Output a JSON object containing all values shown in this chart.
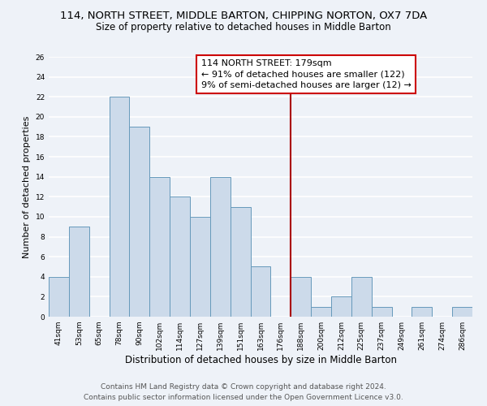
{
  "title": "114, NORTH STREET, MIDDLE BARTON, CHIPPING NORTON, OX7 7DA",
  "subtitle": "Size of property relative to detached houses in Middle Barton",
  "xlabel": "Distribution of detached houses by size in Middle Barton",
  "ylabel": "Number of detached properties",
  "bar_labels": [
    "41sqm",
    "53sqm",
    "65sqm",
    "78sqm",
    "90sqm",
    "102sqm",
    "114sqm",
    "127sqm",
    "139sqm",
    "151sqm",
    "163sqm",
    "176sqm",
    "188sqm",
    "200sqm",
    "212sqm",
    "225sqm",
    "237sqm",
    "249sqm",
    "261sqm",
    "274sqm",
    "286sqm"
  ],
  "bar_values": [
    4,
    9,
    0,
    22,
    19,
    14,
    12,
    10,
    14,
    11,
    5,
    0,
    4,
    1,
    2,
    4,
    1,
    0,
    1,
    0,
    1
  ],
  "bar_color": "#ccdaea",
  "highlight_index": 12,
  "highlight_color": "#ccdaea",
  "vline_color": "#aa0000",
  "annotation_text": "114 NORTH STREET: 179sqm\n← 91% of detached houses are smaller (122)\n9% of semi-detached houses are larger (12) →",
  "annotation_box_color": "white",
  "annotation_box_edge": "#cc0000",
  "ylim": [
    0,
    26
  ],
  "yticks": [
    0,
    2,
    4,
    6,
    8,
    10,
    12,
    14,
    16,
    18,
    20,
    22,
    24,
    26
  ],
  "footer_line1": "Contains HM Land Registry data © Crown copyright and database right 2024.",
  "footer_line2": "Contains public sector information licensed under the Open Government Licence v3.0.",
  "background_color": "#eef2f8",
  "grid_color": "#ffffff",
  "title_fontsize": 9.5,
  "subtitle_fontsize": 8.5,
  "xlabel_fontsize": 8.5,
  "ylabel_fontsize": 8,
  "tick_fontsize": 6.5,
  "annotation_fontsize": 8,
  "footer_fontsize": 6.5
}
